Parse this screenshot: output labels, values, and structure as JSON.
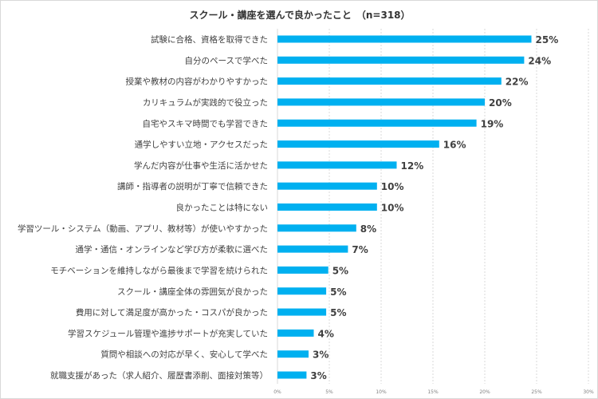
{
  "chart_data": {
    "type": "bar",
    "orientation": "horizontal",
    "title": "スクール・講座を選んで良かったこと　（n=318）",
    "xlabel": "",
    "ylabel": "",
    "xlim": [
      0,
      30
    ],
    "x_ticks": [
      "0%",
      "5%",
      "10%",
      "15%",
      "20%",
      "25%",
      "30%"
    ],
    "grid": true,
    "bar_color": "#00b0f0",
    "categories": [
      "試験に合格、資格を取得できた",
      "自分のペースで学べた",
      "授業や教材の内容がわかりやすかった",
      "カリキュラムが実践的で役立った",
      "自宅やスキマ時間でも学習できた",
      "通学しやすい立地・アクセスだった",
      "学んだ内容が仕事や生活に活かせた",
      "講師・指導者の説明が丁寧で信頼できた",
      "良かったことは特にない",
      "学習ツール・システム（動画、アプリ、教材等）が使いやすかった",
      "通学・通信・オンラインなど学び方が柔軟に選べた",
      "モチベーションを維持しながら最後まで学習を続けられた",
      "スクール・講座全体の雰囲気が良かった",
      "費用に対して満足度が高かった・コスパが良かった",
      "学習スケジュール管理や進捗サポートが充実していた",
      "質問や相談への対応が早く、安心して学べた",
      "就職支援があった（求人紹介、履歴書添削、面接対策等）"
    ],
    "values": [
      24.5,
      23.8,
      21.6,
      20.0,
      19.2,
      15.6,
      11.5,
      9.6,
      9.6,
      7.6,
      6.8,
      4.9,
      4.7,
      4.7,
      3.5,
      3.0,
      2.8
    ],
    "data_labels": [
      "25%",
      "24%",
      "22%",
      "20%",
      "19%",
      "16%",
      "12%",
      "10%",
      "10%",
      "8%",
      "7%",
      "5%",
      "5%",
      "5%",
      "4%",
      "3%",
      "3%"
    ]
  }
}
